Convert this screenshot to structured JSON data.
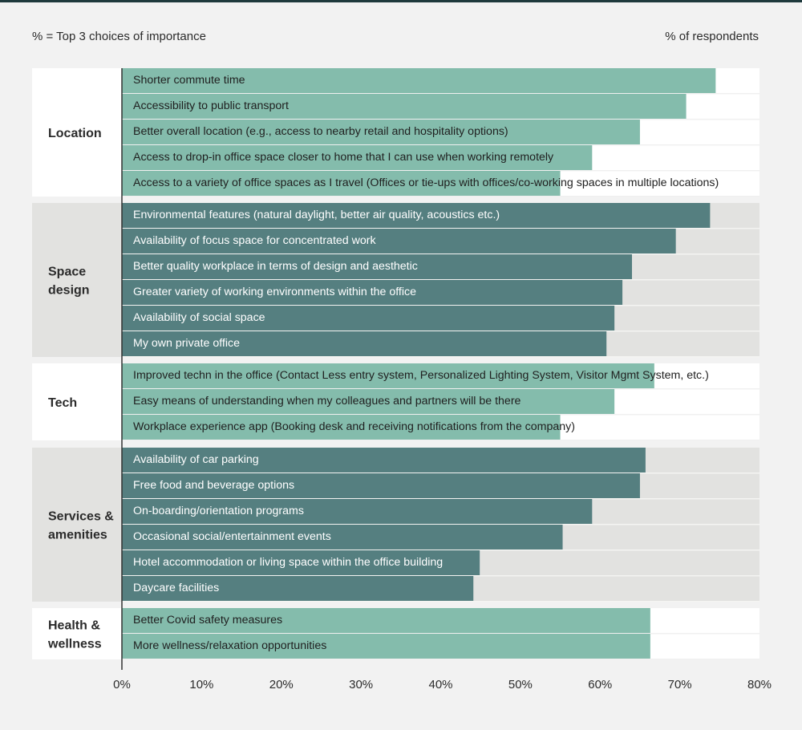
{
  "header": {
    "left_note": "% = Top 3 choices of importance",
    "right_note": "% of respondents"
  },
  "colors": {
    "page_bg": "#f2f2f2",
    "light_group_bg": "#ffffff",
    "dark_group_bg": "#e2e2e0",
    "light_bar": "#84bcac",
    "dark_bar": "#557f80",
    "axis": "#333333",
    "label_dark": "#1f1f1f",
    "label_light": "#ffffff"
  },
  "chart_data": {
    "type": "bar",
    "orientation": "horizontal",
    "xlabel": "",
    "ylabel": "",
    "xlim": [
      0,
      80
    ],
    "x_ticks": [
      "0%",
      "10%",
      "20%",
      "30%",
      "40%",
      "50%",
      "60%",
      "70%",
      "80%"
    ],
    "groups": [
      {
        "name": "Location",
        "style": "light",
        "items": [
          {
            "label": "Shorter commute time",
            "value": 74.5
          },
          {
            "label": "Accessibility to public transport",
            "value": 70.8
          },
          {
            "label": "Better overall location (e.g., access to nearby retail and hospitality options)",
            "value": 65
          },
          {
            "label": "Access to drop-in office space closer to home that I can use when working remotely",
            "value": 59
          },
          {
            "label": "Access to a variety of office spaces as I travel (Offices or tie-ups with offices/co-working spaces in multiple locations)",
            "value": 55
          }
        ]
      },
      {
        "name": "Space design",
        "style": "dark",
        "items": [
          {
            "label": "Environmental features (natural daylight, better air quality, acoustics etc.)",
            "value": 73.8
          },
          {
            "label": "Availability of focus space for concentrated work",
            "value": 69.5
          },
          {
            "label": "Better quality workplace in terms of design and aesthetic",
            "value": 64
          },
          {
            "label": "Greater variety of working environments within the office",
            "value": 62.8
          },
          {
            "label": "Availability of social space",
            "value": 61.8
          },
          {
            "label": "My own private office",
            "value": 60.8
          }
        ]
      },
      {
        "name": "Tech",
        "style": "light",
        "items": [
          {
            "label": "Improved techn in the office (Contact Less entry system, Personalized Lighting System, Visitor Mgmt System, etc.)",
            "value": 66.8
          },
          {
            "label": "Easy means of understanding when my colleagues and partners will be there",
            "value": 61.8
          },
          {
            "label": "Workplace experience app (Booking desk and receiving notifications from the company)",
            "value": 55
          }
        ]
      },
      {
        "name": "Services & amenities",
        "style": "dark",
        "items": [
          {
            "label": "Availability of car parking",
            "value": 65.7
          },
          {
            "label": "Free food and beverage options",
            "value": 65
          },
          {
            "label": "On-boarding/orientation programs",
            "value": 59
          },
          {
            "label": "Occasional social/entertainment events",
            "value": 55.3
          },
          {
            "label": "Hotel accommodation or living space within the office building",
            "value": 44.9
          },
          {
            "label": "Daycare facilities",
            "value": 44.1
          }
        ]
      },
      {
        "name": "Health & wellness",
        "style": "light",
        "items": [
          {
            "label": "Better Covid safety measures",
            "value": 66.3
          },
          {
            "label": "More wellness/relaxation opportunities",
            "value": 66.3
          }
        ]
      }
    ]
  }
}
